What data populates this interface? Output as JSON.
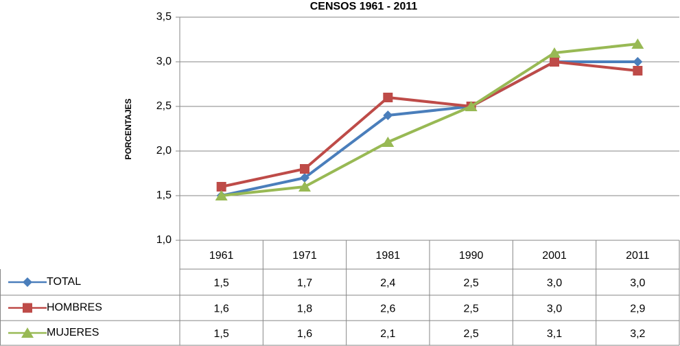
{
  "chart_data": {
    "type": "line",
    "title": "CENSOS 1961 - 2011",
    "y_label": "PORCENTAJES",
    "categories": [
      "1961",
      "1971",
      "1981",
      "1990",
      "2001",
      "2011"
    ],
    "series": [
      {
        "name": "TOTAL",
        "color": "#4a7ebb",
        "marker": "diamond",
        "values": [
          1.5,
          1.7,
          2.4,
          2.5,
          3.0,
          3.0
        ],
        "value_labels": [
          "1,5",
          "1,7",
          "2,4",
          "2,5",
          "3,0",
          "3,0"
        ]
      },
      {
        "name": "HOMBRES",
        "color": "#be4b48",
        "marker": "square",
        "values": [
          1.6,
          1.8,
          2.6,
          2.5,
          3.0,
          2.9
        ],
        "value_labels": [
          "1,6",
          "1,8",
          "2,6",
          "2,5",
          "3,0",
          "2,9"
        ]
      },
      {
        "name": "MUJERES",
        "color": "#98b954",
        "marker": "triangle",
        "values": [
          1.5,
          1.6,
          2.1,
          2.5,
          3.1,
          3.2
        ],
        "value_labels": [
          "1,5",
          "1,6",
          "2,1",
          "2,5",
          "3,1",
          "3,2"
        ]
      }
    ],
    "ylim": [
      1.0,
      3.5
    ],
    "yticks": [
      {
        "value": 1.0,
        "label": "1,0"
      },
      {
        "value": 1.5,
        "label": "1,5"
      },
      {
        "value": 2.0,
        "label": "2,0"
      },
      {
        "value": 2.5,
        "label": "2,5"
      },
      {
        "value": 3.0,
        "label": "3,0"
      },
      {
        "value": 3.5,
        "label": "3,5"
      }
    ],
    "grid": true
  }
}
